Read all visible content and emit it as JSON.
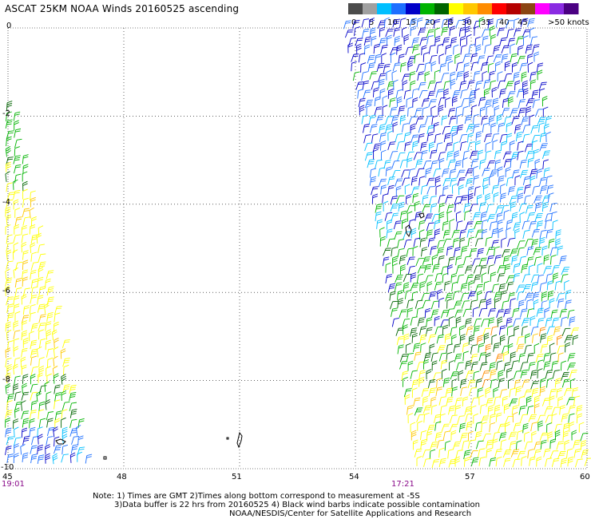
{
  "title": "ASCAT 25KM NOAA Winds 20160525 ascending",
  "legend": {
    "colors": [
      "#4b4b4b",
      "#a0a0a0",
      "#00bfff",
      "#1e6fff",
      "#0000c8",
      "#00b400",
      "#006400",
      "#ffff00",
      "#ffc800",
      "#ff8c00",
      "#ff0000",
      "#b40000",
      "#8b4513",
      "#ff00ff",
      "#8a2be2",
      "#4b0082"
    ],
    "labels": [
      "0",
      "5",
      "10",
      "15",
      "20",
      "25",
      "30",
      "35",
      "40",
      "45",
      ">50 knots"
    ]
  },
  "map": {
    "lon_labels": [
      "45",
      "48",
      "51",
      "54",
      "57",
      "60"
    ],
    "lat_labels": [
      "0",
      "-2",
      "-4",
      "-6",
      "-8",
      "-10"
    ],
    "times": [
      "19:01",
      "17:21"
    ]
  },
  "notes": {
    "line1": "Note: 1) Times are GMT 2)Times along bottom correspond to measurement at -5S",
    "line2": "3)Data buffer is 22 hrs from 20160525 4) Black wind barbs indicate possible contamination",
    "line3": "NOAA/NESDIS/Center for Satellite Applications and Research"
  }
}
